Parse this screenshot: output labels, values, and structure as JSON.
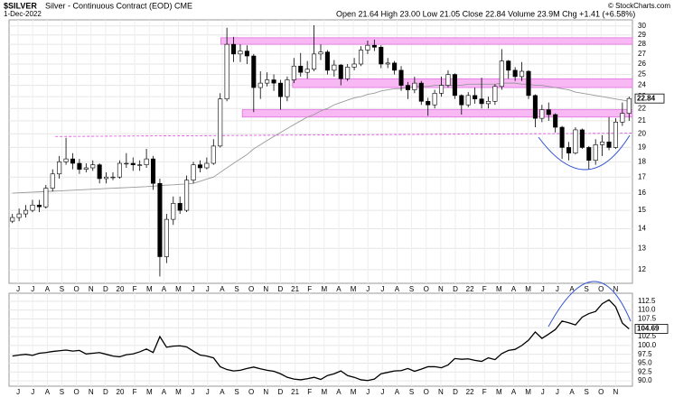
{
  "chart_data": [
    {
      "type": "candlestick",
      "log": true,
      "grid": true,
      "title": "$SILVER",
      "subtitle": "Silver - Continuous Contract (EOD) CME",
      "date": "1-Dec-2022",
      "quote": "Open 21.64 High 23.00 Low 21.05 Close 22.84 Volume 23.9M Chg +1.41 (+6.58%)",
      "credit": "© StockCharts.com",
      "up_color": "#ffffff",
      "down_color": "#000000",
      "ma_color": "#999999",
      "xlim": [
        0,
        93
      ],
      "ylim": [
        11.4,
        30.7
      ],
      "yticks": [
        12,
        13,
        14,
        15,
        16,
        17,
        18,
        19,
        20,
        21,
        22,
        23,
        24,
        25,
        26,
        27,
        28,
        29,
        30
      ],
      "xticks": [
        {
          "value": 1.36,
          "label": "J"
        },
        {
          "value": 3.53,
          "label": "J"
        },
        {
          "value": 5.71,
          "label": "A"
        },
        {
          "value": 7.88,
          "label": "S"
        },
        {
          "value": 10.06,
          "label": "O"
        },
        {
          "value": 12.23,
          "label": "N"
        },
        {
          "value": 14.4,
          "label": "D"
        },
        {
          "value": 16.58,
          "label": "20"
        },
        {
          "value": 18.75,
          "label": "F"
        },
        {
          "value": 20.93,
          "label": "M"
        },
        {
          "value": 23.1,
          "label": "A"
        },
        {
          "value": 25.27,
          "label": "M"
        },
        {
          "value": 27.45,
          "label": "J"
        },
        {
          "value": 29.62,
          "label": "J"
        },
        {
          "value": 31.8,
          "label": "A"
        },
        {
          "value": 33.97,
          "label": "S"
        },
        {
          "value": 36.14,
          "label": "O"
        },
        {
          "value": 38.32,
          "label": "N"
        },
        {
          "value": 40.49,
          "label": "D"
        },
        {
          "value": 42.67,
          "label": "21"
        },
        {
          "value": 44.84,
          "label": "F"
        },
        {
          "value": 47.01,
          "label": "M"
        },
        {
          "value": 49.19,
          "label": "A"
        },
        {
          "value": 51.36,
          "label": "M"
        },
        {
          "value": 53.54,
          "label": "J"
        },
        {
          "value": 55.71,
          "label": "J"
        },
        {
          "value": 57.88,
          "label": "A"
        },
        {
          "value": 60.06,
          "label": "S"
        },
        {
          "value": 62.23,
          "label": "O"
        },
        {
          "value": 64.41,
          "label": "N"
        },
        {
          "value": 66.58,
          "label": "D"
        },
        {
          "value": 68.75,
          "label": "22"
        },
        {
          "value": 70.93,
          "label": "F"
        },
        {
          "value": 73.1,
          "label": "M"
        },
        {
          "value": 75.28,
          "label": "A"
        },
        {
          "value": 77.45,
          "label": "M"
        },
        {
          "value": 79.62,
          "label": "J"
        },
        {
          "value": 81.8,
          "label": "J"
        },
        {
          "value": 83.97,
          "label": "A"
        },
        {
          "value": 86.15,
          "label": "S"
        },
        {
          "value": 88.32,
          "label": "O"
        },
        {
          "value": 90.49,
          "label": "N"
        }
      ],
      "open": [
        14.4,
        14.6,
        14.8,
        15.0,
        15.3,
        15.2,
        16.3,
        17.2,
        18.0,
        18.2,
        17.9,
        17.5,
        17.6,
        17.8,
        16.9,
        17.0,
        17.0,
        17.9,
        17.9,
        17.8,
        17.8,
        18.2,
        16.6,
        12.6,
        14.5,
        15.4,
        15.0,
        16.8,
        17.8,
        17.6,
        17.9,
        19.1,
        22.8,
        28.0,
        27.0,
        27.3,
        26.8,
        23.8,
        24.2,
        24.5,
        24.2,
        23.0,
        24.5,
        25.8,
        25.2,
        25.5,
        27.0,
        27.2,
        25.4,
        25.9,
        24.6,
        25.7,
        26.0,
        27.4,
        27.9,
        27.7,
        26.0,
        26.1,
        25.4,
        24.0,
        23.6,
        24.2,
        22.6,
        22.3,
        23.3,
        24.0,
        25.0,
        23.1,
        22.3,
        23.1,
        22.8,
        22.4,
        22.6,
        23.9,
        26.3,
        25.4,
        24.8,
        25.3,
        23.1,
        21.2,
        21.9,
        21.5,
        20.5,
        19.0,
        18.6,
        20.3,
        19.0,
        18.1,
        19.2,
        19.4,
        19.0,
        20.9,
        21.6
      ],
      "high": [
        14.8,
        15.1,
        15.3,
        15.6,
        15.6,
        16.5,
        17.5,
        18.4,
        19.7,
        18.6,
        18.2,
        17.9,
        18.1,
        17.9,
        17.3,
        17.3,
        18.1,
        18.6,
        18.3,
        18.1,
        18.9,
        18.4,
        16.9,
        14.8,
        15.8,
        15.8,
        17.1,
        18.0,
        18.1,
        18.3,
        19.6,
        23.3,
        29.8,
        28.8,
        28.0,
        27.9,
        27.0,
        25.3,
        25.2,
        25.0,
        24.5,
        24.8,
        26.6,
        27.1,
        26.3,
        30.1,
        28.0,
        27.4,
        26.4,
        26.0,
        26.0,
        26.6,
        27.8,
        28.4,
        28.5,
        27.9,
        26.6,
        26.3,
        25.8,
        24.3,
        24.8,
        24.4,
        22.9,
        23.6,
        24.8,
        25.4,
        25.1,
        23.2,
        23.4,
        23.8,
        24.7,
        23.0,
        24.1,
        27.5,
        26.4,
        25.7,
        26.2,
        25.4,
        23.2,
        22.3,
        22.5,
        21.6,
        20.6,
        19.4,
        20.5,
        20.4,
        19.1,
        19.6,
        19.9,
        21.3,
        21.2,
        22.5,
        23.0
      ],
      "low": [
        14.3,
        14.4,
        14.6,
        14.9,
        14.9,
        15.1,
        16.1,
        16.9,
        17.8,
        17.5,
        17.2,
        17.3,
        17.4,
        16.6,
        16.6,
        16.8,
        16.9,
        17.6,
        17.4,
        17.4,
        17.6,
        16.2,
        11.7,
        12.3,
        14.2,
        14.8,
        14.9,
        16.6,
        17.3,
        17.5,
        17.8,
        19.0,
        22.6,
        26.2,
        26.2,
        26.0,
        21.7,
        22.8,
        23.9,
        23.5,
        21.9,
        22.6,
        24.2,
        24.8,
        24.6,
        25.3,
        26.4,
        25.0,
        24.8,
        24.0,
        24.4,
        25.4,
        25.8,
        27.0,
        27.3,
        25.6,
        25.6,
        25.0,
        23.5,
        22.8,
        23.3,
        22.3,
        21.4,
        22.0,
        23.0,
        23.8,
        22.8,
        21.5,
        22.1,
        22.4,
        22.0,
        22.0,
        22.3,
        23.6,
        24.6,
        24.4,
        24.4,
        22.8,
        20.5,
        20.9,
        21.0,
        20.1,
        18.2,
        18.1,
        18.5,
        18.9,
        17.5,
        17.8,
        18.4,
        18.8,
        18.9,
        20.6,
        21.0
      ],
      "close": [
        14.6,
        14.8,
        15.0,
        15.3,
        15.2,
        16.3,
        17.2,
        18.0,
        18.2,
        17.9,
        17.5,
        17.6,
        17.8,
        16.9,
        17.0,
        17.0,
        17.9,
        17.9,
        17.8,
        17.8,
        18.2,
        16.6,
        12.6,
        14.5,
        15.4,
        15.0,
        16.8,
        17.8,
        17.6,
        17.9,
        19.1,
        22.8,
        28.0,
        27.0,
        27.3,
        26.8,
        23.8,
        24.2,
        24.5,
        24.2,
        23.0,
        24.5,
        25.8,
        25.2,
        25.5,
        27.0,
        27.2,
        25.4,
        25.9,
        24.6,
        25.7,
        26.0,
        27.4,
        27.9,
        27.7,
        26.0,
        26.1,
        25.4,
        24.0,
        23.6,
        24.2,
        22.6,
        22.3,
        23.3,
        24.0,
        25.0,
        23.1,
        22.3,
        23.1,
        22.8,
        22.4,
        22.6,
        23.9,
        26.3,
        25.4,
        24.8,
        25.3,
        23.1,
        21.2,
        21.9,
        21.5,
        20.5,
        19.0,
        18.6,
        20.3,
        19.0,
        18.1,
        19.2,
        19.4,
        19.0,
        20.9,
        21.6,
        22.84
      ],
      "ma": [
        16.0,
        16.02,
        16.04,
        16.06,
        16.08,
        16.1,
        16.12,
        16.14,
        16.16,
        16.18,
        16.2,
        16.22,
        16.24,
        16.26,
        16.28,
        16.3,
        16.32,
        16.34,
        16.36,
        16.38,
        16.4,
        16.43,
        16.46,
        16.49,
        16.51,
        16.54,
        16.57,
        16.6,
        16.73,
        16.87,
        17.0,
        17.3,
        17.6,
        17.9,
        18.2,
        18.5,
        18.9,
        19.2,
        19.5,
        19.8,
        20.1,
        20.4,
        20.7,
        21.0,
        21.3,
        21.5,
        21.8,
        22.0,
        22.3,
        22.5,
        22.7,
        22.9,
        23.0,
        23.2,
        23.3,
        23.5,
        23.6,
        23.7,
        23.7,
        23.8,
        23.9,
        23.9,
        23.9,
        24.0,
        24.0,
        24.0,
        24.0,
        24.0,
        24.1,
        24.1,
        24.1,
        24.1,
        24.1,
        24.2,
        24.2,
        24.2,
        24.1,
        24.1,
        24.0,
        24.0,
        23.9,
        23.8,
        23.7,
        23.6,
        23.4,
        23.3,
        23.2,
        23.1,
        23.0,
        22.9,
        22.8,
        22.7,
        22.6
      ],
      "zones": [
        {
          "low": 28.0,
          "high": 28.7,
          "start": 31.6
        },
        {
          "low": 23.8,
          "high": 24.6,
          "start": 42.3
        },
        {
          "low": 21.3,
          "high": 21.9,
          "start": 34.8
        }
      ],
      "zone_color": "#f7b8f3",
      "zone_border": "#e070e0",
      "trendline": {
        "start": 6.9,
        "from": 19.8,
        "to": 20.05,
        "color": "#e040e0"
      }
    },
    {
      "type": "line",
      "color": "#000000",
      "grid": true,
      "xlim": [
        0,
        93
      ],
      "ylim": [
        88.5,
        114.75
      ],
      "yticks": [
        {
          "value": 90,
          "label": "90.0"
        },
        {
          "value": 92.5,
          "label": "92.5"
        },
        {
          "value": 95,
          "label": "95.0"
        },
        {
          "value": 97.5,
          "label": "97.5"
        },
        {
          "value": 100,
          "label": "100.0"
        },
        {
          "value": 102.5,
          "label": "102.5"
        },
        {
          "value": 105,
          "label": "105.0"
        },
        {
          "value": 107.5,
          "label": "107.5"
        },
        {
          "value": 110,
          "label": "110.0"
        },
        {
          "value": 112.5,
          "label": "112.5"
        }
      ],
      "xticks": [
        {
          "value": 1.36,
          "label": "J"
        },
        {
          "value": 3.53,
          "label": "J"
        },
        {
          "value": 5.71,
          "label": "A"
        },
        {
          "value": 7.88,
          "label": "S"
        },
        {
          "value": 10.06,
          "label": "O"
        },
        {
          "value": 12.23,
          "label": "N"
        },
        {
          "value": 14.4,
          "label": "D"
        },
        {
          "value": 16.58,
          "label": "20"
        },
        {
          "value": 18.75,
          "label": "F"
        },
        {
          "value": 20.93,
          "label": "M"
        },
        {
          "value": 23.1,
          "label": "A"
        },
        {
          "value": 25.27,
          "label": "M"
        },
        {
          "value": 27.45,
          "label": "J"
        },
        {
          "value": 29.62,
          "label": "J"
        },
        {
          "value": 31.8,
          "label": "A"
        },
        {
          "value": 33.97,
          "label": "S"
        },
        {
          "value": 36.14,
          "label": "O"
        },
        {
          "value": 38.32,
          "label": "N"
        },
        {
          "value": 40.49,
          "label": "D"
        },
        {
          "value": 42.67,
          "label": "21"
        },
        {
          "value": 44.84,
          "label": "F"
        },
        {
          "value": 47.01,
          "label": "M"
        },
        {
          "value": 49.19,
          "label": "A"
        },
        {
          "value": 51.36,
          "label": "M"
        },
        {
          "value": 53.54,
          "label": "J"
        },
        {
          "value": 55.71,
          "label": "J"
        },
        {
          "value": 57.88,
          "label": "A"
        },
        {
          "value": 60.06,
          "label": "S"
        },
        {
          "value": 62.23,
          "label": "O"
        },
        {
          "value": 64.41,
          "label": "N"
        },
        {
          "value": 66.58,
          "label": "D"
        },
        {
          "value": 68.75,
          "label": "22"
        },
        {
          "value": 70.93,
          "label": "F"
        },
        {
          "value": 73.1,
          "label": "M"
        },
        {
          "value": 75.28,
          "label": "A"
        },
        {
          "value": 77.45,
          "label": "M"
        },
        {
          "value": 79.62,
          "label": "J"
        },
        {
          "value": 81.8,
          "label": "J"
        },
        {
          "value": 83.97,
          "label": "A"
        },
        {
          "value": 86.15,
          "label": "S"
        },
        {
          "value": 88.32,
          "label": "O"
        },
        {
          "value": 90.49,
          "label": "N"
        }
      ],
      "values": [
        97.0,
        97.3,
        97.5,
        97.2,
        97.8,
        98.0,
        98.3,
        98.5,
        98.7,
        98.4,
        98.6,
        97.6,
        97.8,
        98.0,
        97.5,
        97.0,
        96.8,
        97.4,
        97.6,
        98.2,
        99.0,
        98.0,
        102.5,
        99.5,
        99.8,
        99.9,
        99.6,
        98.4,
        97.3,
        97.0,
        96.5,
        94.0,
        93.2,
        92.8,
        93.0,
        93.5,
        93.9,
        93.4,
        93.0,
        92.7,
        92.0,
        91.0,
        90.5,
        90.3,
        90.6,
        91.0,
        90.4,
        91.5,
        92.0,
        92.8,
        91.5,
        91.0,
        90.3,
        90.1,
        90.5,
        92.0,
        92.4,
        92.8,
        92.9,
        93.5,
        92.7,
        93.3,
        94.0,
        94.0,
        93.7,
        94.5,
        96.3,
        96.1,
        96.2,
        95.8,
        95.5,
        96.5,
        96.0,
        97.7,
        98.6,
        98.9,
        100.0,
        101.5,
        103.8,
        102.0,
        103.2,
        104.5,
        106.9,
        106.4,
        105.8,
        108.0,
        109.0,
        109.6,
        111.8,
        112.9,
        110.9,
        106.3,
        104.69
      ]
    }
  ]
}
